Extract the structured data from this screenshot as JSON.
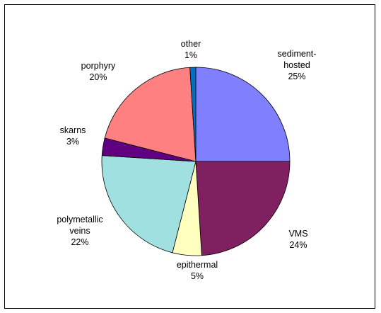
{
  "chart_data": {
    "type": "pie",
    "title": "",
    "slices": [
      {
        "label_lines": [
          "sediment-",
          "hosted"
        ],
        "pct_label": "25%",
        "value": 25,
        "color": "#8080ff"
      },
      {
        "label_lines": [
          "VMS"
        ],
        "pct_label": "24%",
        "value": 24,
        "color": "#802060"
      },
      {
        "label_lines": [
          "epithermal"
        ],
        "pct_label": "5%",
        "value": 5,
        "color": "#ffffc0"
      },
      {
        "label_lines": [
          "polymetallic",
          "veins"
        ],
        "pct_label": "22%",
        "value": 22,
        "color": "#a0e0e0"
      },
      {
        "label_lines": [
          "skarns"
        ],
        "pct_label": "3%",
        "value": 3,
        "color": "#600080"
      },
      {
        "label_lines": [
          "porphyry"
        ],
        "pct_label": "20%",
        "value": 20,
        "color": "#ff8080"
      },
      {
        "label_lines": [
          "other"
        ],
        "pct_label": "1%",
        "value": 1,
        "color": "#0070c0"
      }
    ],
    "start": "12 o'clock",
    "direction": "clockwise",
    "legend": "none"
  }
}
